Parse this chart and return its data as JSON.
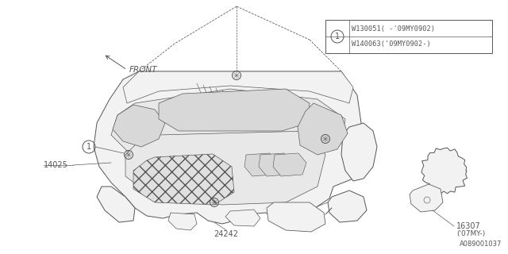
{
  "background_color": "#ffffff",
  "line_color": "#555555",
  "line_width": 0.7,
  "fig_width": 6.4,
  "fig_height": 3.2,
  "dpi": 100,
  "parts": {
    "main_cover_label": "14025",
    "part2_label": "24242",
    "part3_label": "16307",
    "part3_sub_label": "('07MY-)",
    "bolt_label": "1",
    "legend_line1": "W130051（-’09MY0902）",
    "legend_line1_raw": "W130051( -'09MY0902)",
    "legend_line2_raw": "W140063('09MY0902-)",
    "front_label": "FRONT",
    "diagram_id": "A089001037"
  },
  "colors": {
    "outline": "#555555",
    "fill_cover": "#f2f2f2",
    "fill_inner": "#e8e8e8",
    "fill_recess": "#d8d8d8",
    "legend_bg": "#ffffff",
    "legend_border": "#555555"
  }
}
